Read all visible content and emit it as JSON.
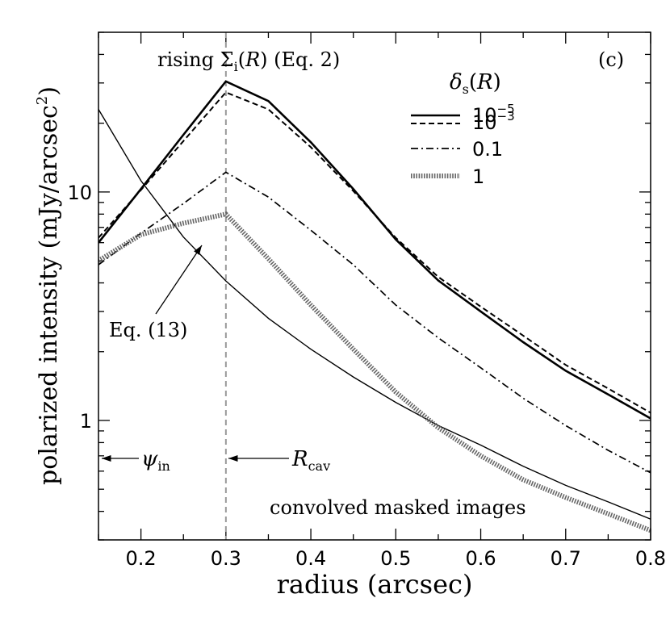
{
  "chart_data": {
    "type": "line",
    "panel_label": "(c)",
    "xlabel": "radius (arcsec)",
    "ylabel": "polarized intensity (mJy/arcsec²)",
    "xlim": [
      0.15,
      0.8
    ],
    "ylim": [
      0.3,
      50
    ],
    "yscale": "log",
    "x_ticks": [
      {
        "value": 0.2,
        "label": "0.2"
      },
      {
        "value": 0.3,
        "label": "0.3"
      },
      {
        "value": 0.4,
        "label": "0.4"
      },
      {
        "value": 0.5,
        "label": "0.5"
      },
      {
        "value": 0.6,
        "label": "0.6"
      },
      {
        "value": 0.7,
        "label": "0.7"
      },
      {
        "value": 0.8,
        "label": "0.8"
      }
    ],
    "y_ticks": [
      {
        "value": 1,
        "label": "1"
      },
      {
        "value": 10,
        "label": "10"
      }
    ],
    "legend_title": "δs(R)",
    "legend_position": "top-right",
    "series": [
      {
        "name": "10⁻⁵",
        "style": "solid-thick",
        "x": [
          0.15,
          0.2,
          0.25,
          0.3,
          0.35,
          0.4,
          0.45,
          0.5,
          0.55,
          0.6,
          0.65,
          0.7,
          0.75,
          0.8
        ],
        "values": [
          6.0,
          10.3,
          17.8,
          30.5,
          25.0,
          16.5,
          10.3,
          6.2,
          4.1,
          3.0,
          2.2,
          1.65,
          1.3,
          1.02
        ]
      },
      {
        "name": "10⁻³",
        "style": "dashed",
        "x": [
          0.15,
          0.2,
          0.25,
          0.3,
          0.35,
          0.4,
          0.45,
          0.5,
          0.55,
          0.6,
          0.65,
          0.7,
          0.75,
          0.8
        ],
        "values": [
          6.3,
          10.2,
          16.7,
          27.3,
          23.0,
          15.7,
          10.1,
          6.3,
          4.25,
          3.15,
          2.35,
          1.75,
          1.38,
          1.08
        ]
      },
      {
        "name": "0.1",
        "style": "dash-dot",
        "x": [
          0.15,
          0.2,
          0.25,
          0.3,
          0.35,
          0.4,
          0.45,
          0.5,
          0.55,
          0.6,
          0.65,
          0.7,
          0.75,
          0.8
        ],
        "values": [
          4.8,
          6.6,
          8.9,
          12.2,
          9.5,
          6.8,
          4.8,
          3.2,
          2.3,
          1.7,
          1.25,
          0.95,
          0.74,
          0.59
        ]
      },
      {
        "name": "1",
        "style": "dotted-thick",
        "x": [
          0.15,
          0.2,
          0.25,
          0.3,
          0.35,
          0.4,
          0.45,
          0.5,
          0.55,
          0.6,
          0.65,
          0.7,
          0.75,
          0.8
        ],
        "values": [
          5.0,
          6.5,
          7.3,
          8.0,
          5.1,
          3.2,
          2.05,
          1.33,
          0.93,
          0.7,
          0.55,
          0.46,
          0.39,
          0.33
        ]
      }
    ],
    "reference_curve": {
      "name": "Eq. (13)",
      "x": [
        0.15,
        0.2,
        0.25,
        0.3,
        0.35,
        0.4,
        0.45,
        0.5,
        0.55,
        0.6,
        0.65,
        0.7,
        0.75,
        0.8
      ],
      "values": [
        23.0,
        11.2,
        6.35,
        4.08,
        2.8,
        2.05,
        1.55,
        1.2,
        0.95,
        0.78,
        0.63,
        0.52,
        0.44,
        0.37
      ]
    },
    "vertical_line": {
      "x": 0.3,
      "style": "dashed-gray"
    },
    "annotations": {
      "top_text": "rising Σi(R) (Eq. 2)",
      "eq13": "Eq. (13)",
      "psi_in": "ψin",
      "r_cav": "Rcav",
      "bottom_text": "convolved masked images"
    }
  }
}
